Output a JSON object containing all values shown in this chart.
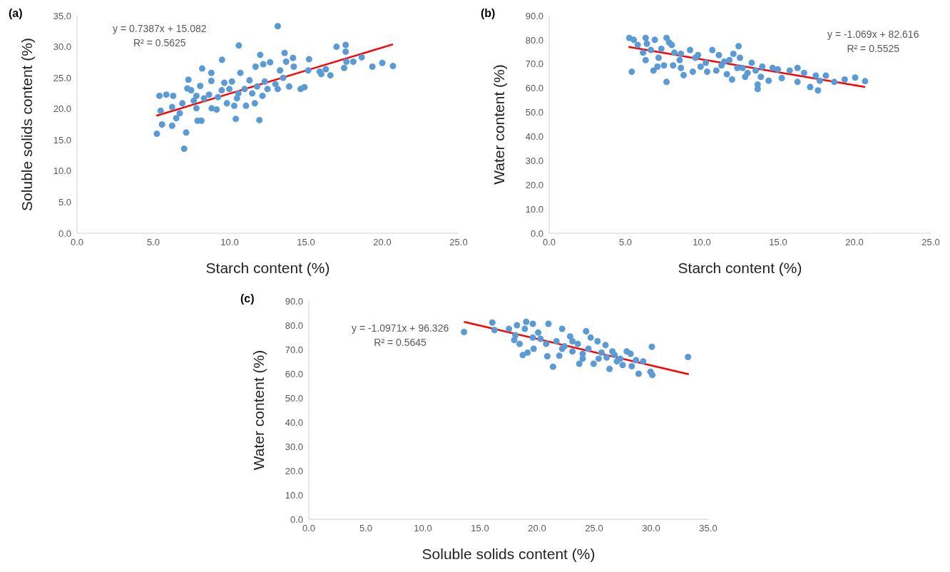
{
  "chart_data": [
    {
      "type": "scatter",
      "title": "(a)",
      "xlabel": "Starch content (%)",
      "ylabel": "Soluble solids content (%)",
      "annotations": [
        "y = 0.7387x + 15.082",
        "R² = 0.5625"
      ],
      "xlim": [
        0,
        25
      ],
      "xticks": [
        {
          "value": 0,
          "label": "0.0"
        },
        {
          "value": 5,
          "label": "5.0"
        },
        {
          "value": 10,
          "label": "10.0"
        },
        {
          "value": 15,
          "label": "15.0"
        },
        {
          "value": 20,
          "label": "20.0"
        },
        {
          "value": 25,
          "label": "25.0"
        }
      ],
      "ylim": [
        0,
        35
      ],
      "yticks": [
        {
          "value": 0,
          "label": "0.0"
        },
        {
          "value": 5,
          "label": "5.0"
        },
        {
          "value": 10,
          "label": "10.0"
        },
        {
          "value": 15,
          "label": "15.0"
        },
        {
          "value": 20,
          "label": "20.0"
        },
        {
          "value": 25,
          "label": "25.0"
        },
        {
          "value": 30,
          "label": "30.0"
        },
        {
          "value": 35,
          "label": "35.0"
        }
      ],
      "grid": false,
      "series": [
        {
          "marker": "circle",
          "color": "#5b9bd5",
          "x": [
            13.15,
            10.6,
            17.0,
            17.6,
            17.6,
            12.0,
            13.6,
            14.15,
            15.2,
            9.5,
            18.65,
            18.1,
            17.65,
            20.0,
            19.35,
            20.7,
            17.5,
            12.65,
            13.7,
            14.2,
            15.15,
            15.9,
            16.3,
            16.6,
            16.0,
            8.2,
            8.8,
            7.3,
            8.8,
            10.7,
            11.7,
            12.2,
            13.3,
            13.9,
            14.65,
            14.9,
            9.65,
            10.15,
            11.3,
            12.3,
            13.0,
            13.5,
            8.07,
            7.23,
            7.48,
            5.4,
            5.85,
            6.3,
            5.48,
            6.23,
            5.57,
            5.23,
            6.23,
            7.15,
            7.02,
            6.9,
            6.5,
            6.73,
            7.82,
            7.82,
            7.9,
            8.15,
            8.65,
            8.82,
            9.15,
            9.23,
            9.82,
            10.4,
            10.3,
            10.48,
            11.07,
            11.65,
            11.95,
            11.48,
            12.15,
            10.98,
            9.98,
            9.48,
            11.8,
            12.48,
            13.15,
            10.57,
            7.65,
            8.32
          ],
          "values": [
            33.3,
            30.2,
            30.0,
            30.3,
            29.2,
            28.7,
            29.0,
            28.2,
            28.0,
            27.9,
            28.3,
            27.6,
            27.6,
            27.4,
            26.8,
            26.9,
            26.6,
            27.5,
            27.6,
            26.8,
            26.2,
            26.0,
            26.4,
            25.4,
            25.6,
            26.5,
            25.8,
            24.7,
            24.5,
            25.8,
            26.8,
            27.2,
            26.2,
            23.6,
            23.2,
            23.5,
            24.2,
            24.4,
            24.6,
            24.4,
            24.0,
            25.0,
            23.7,
            23.3,
            23.0,
            22.1,
            22.3,
            22.1,
            19.7,
            20.3,
            17.5,
            16.0,
            17.3,
            16.2,
            13.6,
            20.9,
            18.5,
            19.3,
            22.1,
            20.1,
            18.1,
            18.1,
            22.3,
            20.1,
            19.9,
            21.9,
            20.9,
            18.4,
            20.5,
            21.7,
            20.5,
            20.9,
            18.2,
            22.5,
            22.1,
            23.2,
            23.2,
            23.0,
            23.6,
            23.2,
            23.2,
            22.5,
            21.3,
            21.7
          ]
        },
        {
          "type": "line",
          "marker": "none",
          "color": "#ff0000",
          "x": [
            5.2,
            20.7
          ],
          "values": [
            18.9,
            30.4
          ]
        }
      ]
    },
    {
      "type": "scatter",
      "title": "(b)",
      "xlabel": "Starch content (%)",
      "ylabel": "Water content (%)",
      "annotations": [
        "y = -1.069x + 82.616",
        "R² = 0.5525"
      ],
      "xlim": [
        0,
        25
      ],
      "xticks": [
        {
          "value": 0,
          "label": "0.0"
        },
        {
          "value": 5,
          "label": "5.0"
        },
        {
          "value": 10,
          "label": "10.0"
        },
        {
          "value": 15,
          "label": "15.0"
        },
        {
          "value": 20,
          "label": "20.0"
        },
        {
          "value": 25,
          "label": "25.0"
        }
      ],
      "ylim": [
        0,
        90
      ],
      "yticks": [
        {
          "value": 0,
          "label": "0.0"
        },
        {
          "value": 10,
          "label": "10.0"
        },
        {
          "value": 20,
          "label": "20.0"
        },
        {
          "value": 30,
          "label": "30.0"
        },
        {
          "value": 40,
          "label": "40.0"
        },
        {
          "value": 50,
          "label": "50.0"
        },
        {
          "value": 60,
          "label": "60.0"
        },
        {
          "value": 70,
          "label": "70.0"
        },
        {
          "value": 80,
          "label": "80.0"
        },
        {
          "value": 90,
          "label": "90.0"
        }
      ],
      "grid": false,
      "series": [
        {
          "marker": "circle",
          "color": "#5b9bd5",
          "x": [
            5.25,
            5.54,
            5.8,
            5.41,
            6.32,
            6.4,
            6.92,
            6.32,
            6.83,
            7.09,
            7.17,
            7.69,
            7.86,
            8.03,
            7.69,
            7.52,
            8.12,
            8.2,
            8.63,
            8.63,
            8.81,
            9.23,
            9.41,
            9.75,
            9.92,
            10.35,
            10.69,
            10.95,
            11.12,
            11.47,
            11.64,
            11.98,
            12.07,
            12.41,
            12.5,
            12.67,
            13.0,
            13.27,
            13.53,
            13.66,
            13.66,
            13.96,
            13.87,
            14.38,
            14.64,
            14.98,
            15.24,
            15.76,
            16.27,
            16.27,
            16.7,
            17.1,
            17.47,
            17.73,
            17.61,
            18.13,
            18.68,
            19.36,
            20.05,
            20.7,
            6.66,
            7.35,
            8.55,
            9.58,
            10.26,
            11.29,
            11.81,
            12.33,
            12.84,
            6.15
          ],
          "values": [
            80.8,
            80.0,
            77.9,
            66.8,
            80.8,
            78.4,
            80.0,
            71.6,
            67.3,
            68.9,
            72.6,
            80.8,
            78.9,
            77.9,
            62.6,
            69.4,
            69.4,
            74.7,
            74.2,
            68.4,
            65.4,
            75.8,
            66.8,
            73.7,
            68.9,
            66.8,
            75.8,
            67.3,
            73.7,
            71.0,
            65.8,
            63.6,
            74.2,
            77.4,
            72.6,
            68.4,
            66.3,
            70.5,
            67.3,
            61.5,
            59.7,
            68.9,
            64.7,
            63.1,
            68.4,
            67.8,
            64.2,
            67.3,
            68.4,
            62.6,
            66.3,
            60.5,
            65.2,
            63.1,
            59.1,
            65.2,
            62.6,
            63.6,
            64.4,
            62.9,
            75.8,
            76.3,
            71.6,
            72.6,
            70.5,
            69.4,
            71.6,
            68.4,
            64.7,
            74.7
          ]
        },
        {
          "type": "line",
          "marker": "none",
          "color": "#ff0000",
          "x": [
            5.2,
            20.7
          ],
          "values": [
            77.1,
            60.5
          ]
        }
      ]
    },
    {
      "type": "scatter",
      "title": "(c)",
      "xlabel": "Soluble solids content (%)",
      "ylabel": "Water content (%)",
      "annotations": [
        "y = -1.0971x + 96.326",
        "R² = 0.5645"
      ],
      "xlim": [
        0,
        35
      ],
      "xticks": [
        {
          "value": 0,
          "label": "0.0"
        },
        {
          "value": 5,
          "label": "5.0"
        },
        {
          "value": 10,
          "label": "10.0"
        },
        {
          "value": 15,
          "label": "15.0"
        },
        {
          "value": 20,
          "label": "20.0"
        },
        {
          "value": 25,
          "label": "25.0"
        },
        {
          "value": 30,
          "label": "30.0"
        },
        {
          "value": 35,
          "label": "35.0"
        }
      ],
      "ylim": [
        0,
        90
      ],
      "yticks": [
        {
          "value": 0,
          "label": "0.0"
        },
        {
          "value": 10,
          "label": "10.0"
        },
        {
          "value": 20,
          "label": "20.0"
        },
        {
          "value": 30,
          "label": "30.0"
        },
        {
          "value": 40,
          "label": "40.0"
        },
        {
          "value": 50,
          "label": "50.0"
        },
        {
          "value": 60,
          "label": "60.0"
        },
        {
          "value": 70,
          "label": "70.0"
        },
        {
          "value": 80,
          "label": "80.0"
        },
        {
          "value": 90,
          "label": "90.0"
        }
      ],
      "grid": false,
      "series": [
        {
          "marker": "circle",
          "color": "#5b9bd5",
          "x": [
            13.6,
            16.08,
            16.27,
            17.54,
            18.24,
            19.05,
            19.63,
            18.0,
            18.47,
            18.75,
            19.17,
            19.7,
            20.1,
            20.9,
            21.0,
            21.4,
            21.95,
            22.2,
            22.9,
            23.1,
            23.7,
            24.3,
            24.7,
            24.96,
            25.3,
            25.65,
            26.0,
            26.35,
            26.6,
            27.0,
            27.5,
            27.86,
            28.2,
            28.3,
            28.67,
            28.9,
            29.3,
            30.06,
            29.94,
            30.1,
            33.23,
            20.3,
            21.7,
            22.4,
            23.57,
            24.0,
            24.5,
            25.4,
            26.1,
            27.3,
            19.63,
            20.8,
            22.2,
            23.1,
            24.0,
            26.8,
            18.1,
            18.93
          ],
          "values": [
            77.2,
            81.1,
            78.0,
            78.5,
            80.0,
            81.4,
            80.6,
            73.9,
            72.3,
            67.7,
            68.7,
            70.3,
            77.0,
            67.2,
            80.6,
            62.9,
            67.4,
            78.5,
            75.4,
            69.2,
            64.1,
            77.5,
            74.9,
            64.1,
            73.4,
            68.7,
            71.8,
            62.0,
            69.2,
            65.1,
            63.6,
            69.2,
            68.2,
            63.1,
            65.6,
            60.0,
            65.1,
            71.1,
            60.8,
            59.5,
            66.9,
            74.4,
            73.4,
            71.3,
            72.3,
            68.2,
            70.3,
            66.2,
            66.7,
            66.2,
            74.9,
            72.3,
            70.3,
            73.4,
            66.2,
            67.7,
            75.9,
            78.5
          ]
        },
        {
          "type": "line",
          "marker": "none",
          "color": "#ff0000",
          "x": [
            13.6,
            33.3
          ],
          "values": [
            81.4,
            59.8
          ]
        }
      ]
    }
  ]
}
